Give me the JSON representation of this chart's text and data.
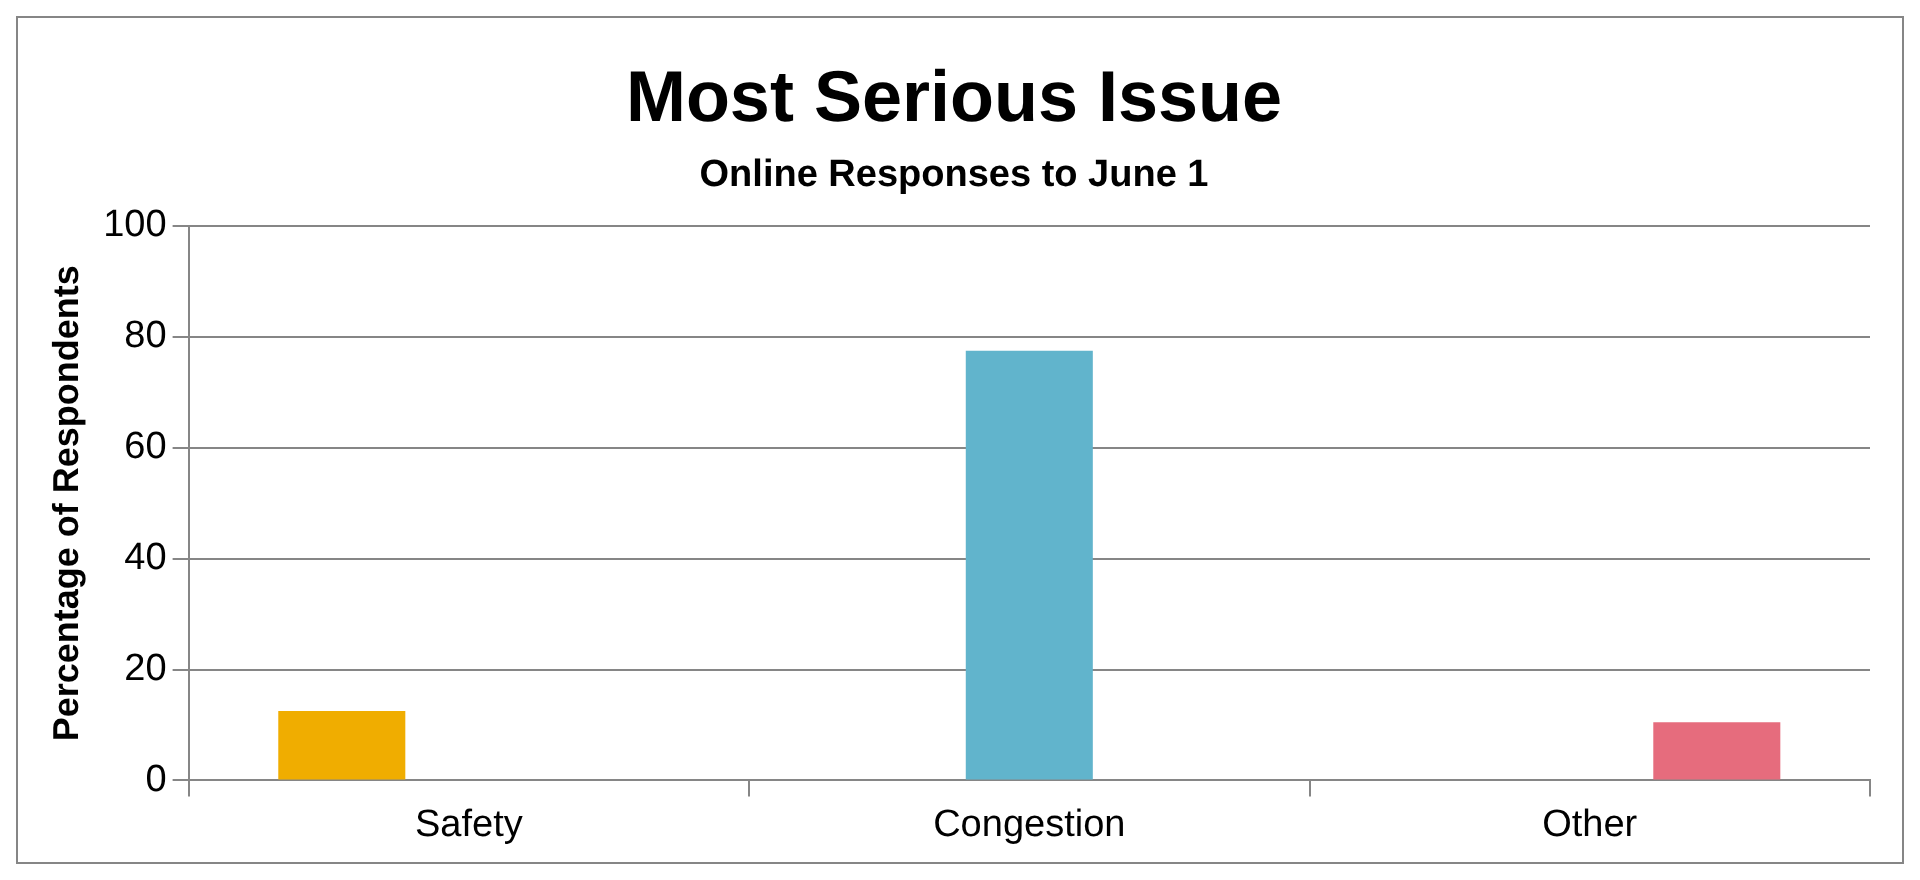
{
  "chart_data": {
    "type": "bar",
    "title": "Most Serious Issue",
    "subtitle": "Online Responses to June 1",
    "ylabel": "Percentage of Respondents",
    "categories": [
      "Safety",
      "Congestion",
      "Other"
    ],
    "series": [
      {
        "color": "#f0ad00",
        "values": [
          12.5,
          null,
          null
        ]
      },
      {
        "color": "#61b4cc",
        "values": [
          null,
          77.5,
          null
        ]
      },
      {
        "color": "#e66c7d",
        "values": [
          null,
          null,
          10.5
        ]
      }
    ],
    "ylim": [
      0,
      100
    ],
    "yticks": [
      0,
      20,
      40,
      60,
      80,
      100
    ],
    "grid": "y",
    "legend": false
  }
}
